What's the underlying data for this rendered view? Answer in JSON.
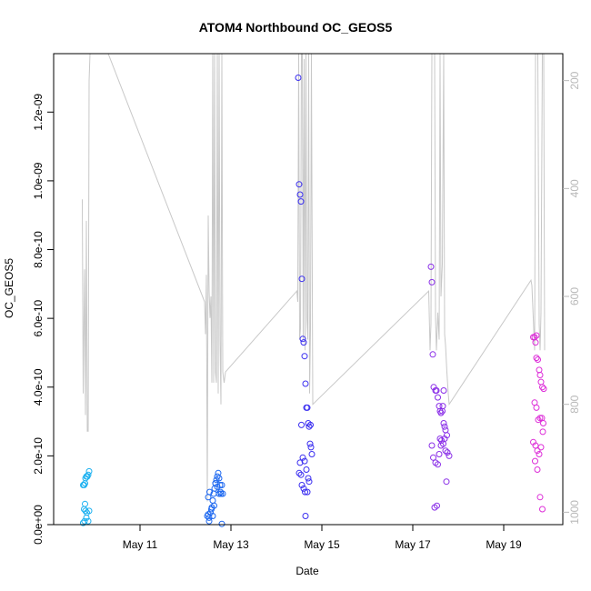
{
  "chart_data": {
    "type": "scatter",
    "title": "ATOM4 Northbound OC_GEOS5",
    "xlabel": "Date",
    "ylabel": "OC_GEOS5",
    "x_ticks": [
      {
        "day": 11,
        "label": "May 11"
      },
      {
        "day": 13,
        "label": "May 13"
      },
      {
        "day": 15,
        "label": "May 15"
      },
      {
        "day": 17,
        "label": "May 17"
      },
      {
        "day": 19,
        "label": "May 19"
      }
    ],
    "xlim": [
      9.1,
      20.3
    ],
    "ylim": [
      0,
      1.37e-09
    ],
    "y_ticks": [
      {
        "value": 0,
        "label": "0.0e+00"
      },
      {
        "value": 2e-10,
        "label": "2.0e-10"
      },
      {
        "value": 4e-10,
        "label": "4.0e-10"
      },
      {
        "value": 6e-10,
        "label": "6.0e-10"
      },
      {
        "value": 8e-10,
        "label": "8.0e-10"
      },
      {
        "value": 1e-09,
        "label": "1.0e-09"
      },
      {
        "value": 1.2e-09,
        "label": "1.2e-09"
      }
    ],
    "y2lim": [
      1023,
      150
    ],
    "y2_ticks": [
      {
        "value": 200,
        "label": "200"
      },
      {
        "value": 400,
        "label": "400"
      },
      {
        "value": 600,
        "label": "600"
      },
      {
        "value": 800,
        "label": "800"
      },
      {
        "value": 1000,
        "label": "1000"
      }
    ],
    "grid": false,
    "colors": {
      "pressure_line": "#c8c8c8",
      "flight1": "#1ab0f0",
      "flight2": "#1a66f0",
      "flight3": "#3a2ef0",
      "flight4": "#8a2ee8",
      "flight5": "#dd2ed8"
    },
    "series": [
      {
        "color_key": "flight1",
        "x": [
          9.75,
          9.77,
          9.8,
          9.82,
          9.84,
          9.86,
          9.88,
          9.77,
          9.79,
          9.8,
          9.83,
          9.78,
          9.82,
          9.86,
          9.88,
          9.75,
          9.79
        ],
        "y": [
          1.15e-10,
          1.15e-10,
          1.35e-10,
          1.4e-10,
          1.4e-10,
          1.45e-10,
          1.55e-10,
          4.5e-11,
          6e-11,
          4e-11,
          3.5e-11,
          1e-11,
          2e-11,
          1e-11,
          4e-11,
          5e-12,
          1.2e-10
        ]
      },
      {
        "color_key": "flight2",
        "x": [
          12.48,
          12.5,
          12.52,
          12.55,
          12.58,
          12.6,
          12.62,
          12.64,
          12.66,
          12.68,
          12.7,
          12.72,
          12.74,
          12.76,
          12.78,
          12.8,
          12.82,
          12.5,
          12.53,
          12.57,
          12.63,
          12.66,
          12.7,
          12.74,
          12.77,
          12.52,
          12.6,
          12.8
        ],
        "y": [
          2.5e-11,
          3e-11,
          2e-11,
          3.5e-11,
          5e-11,
          7e-11,
          9e-11,
          1.05e-10,
          1.2e-10,
          1.3e-10,
          1.4e-10,
          1.5e-10,
          1.35e-10,
          1.15e-10,
          9e-11,
          1.15e-10,
          9e-11,
          8e-11,
          9.5e-11,
          4.5e-11,
          5.5e-11,
          1.2e-10,
          1.1e-10,
          9e-11,
          9.5e-11,
          1e-11,
          2.5e-11,
          2e-12
        ]
      },
      {
        "color_key": "flight3",
        "x": [
          14.48,
          14.5,
          14.52,
          14.54,
          14.56,
          14.58,
          14.6,
          14.62,
          14.64,
          14.66,
          14.68,
          14.7,
          14.72,
          14.74,
          14.76,
          14.78,
          14.55,
          14.58,
          14.62,
          14.66,
          14.7,
          14.72,
          14.5,
          14.54,
          14.6,
          14.63,
          14.68,
          14.75,
          14.52,
          14.56,
          14.64
        ],
        "y": [
          1.3e-09,
          9.9e-10,
          9.6e-10,
          9.4e-10,
          7.15e-10,
          5.4e-10,
          5.3e-10,
          4.9e-10,
          4.1e-10,
          3.4e-10,
          3.4e-10,
          2.95e-10,
          2.85e-10,
          2.35e-10,
          2.25e-10,
          2.05e-10,
          2.9e-10,
          1.95e-10,
          1.85e-10,
          1.6e-10,
          1.35e-10,
          1.25e-10,
          1.5e-10,
          1.45e-10,
          1.05e-10,
          9.5e-11,
          9.5e-11,
          2.9e-10,
          1.8e-10,
          1.15e-10,
          2.5e-11
        ]
      },
      {
        "color_key": "flight4",
        "x": [
          17.4,
          17.42,
          17.44,
          17.46,
          17.5,
          17.52,
          17.55,
          17.58,
          17.6,
          17.62,
          17.65,
          17.68,
          17.7,
          17.72,
          17.75,
          17.6,
          17.63,
          17.67,
          17.72,
          17.76,
          17.8,
          17.45,
          17.5,
          17.55,
          17.58,
          17.62,
          17.66,
          17.7,
          17.74,
          17.48,
          17.53,
          17.68,
          17.42
        ],
        "y": [
          7.5e-10,
          7.05e-10,
          4.95e-10,
          4e-10,
          3.9e-10,
          3.9e-10,
          3.7e-10,
          3.45e-10,
          3.3e-10,
          3.25e-10,
          3.3e-10,
          2.95e-10,
          2.85e-10,
          2.75e-10,
          2.6e-10,
          2.5e-10,
          2.45e-10,
          2.35e-10,
          2.15e-10,
          2.1e-10,
          2e-10,
          1.95e-10,
          1.8e-10,
          1.75e-10,
          2.05e-10,
          2.3e-10,
          3.45e-10,
          2.5e-10,
          1.25e-10,
          5e-11,
          5.5e-11,
          3.9e-10,
          2.3e-10
        ]
      },
      {
        "color_key": "flight5",
        "x": [
          19.65,
          19.68,
          19.7,
          19.72,
          19.75,
          19.78,
          19.8,
          19.82,
          19.85,
          19.88,
          19.68,
          19.72,
          19.76,
          19.8,
          19.84,
          19.87,
          19.65,
          19.7,
          19.74,
          19.78,
          19.82,
          19.86,
          19.69,
          19.74,
          19.8,
          19.85,
          19.72
        ],
        "y": [
          5.45e-10,
          5.45e-10,
          5.3e-10,
          4.85e-10,
          4.8e-10,
          4.5e-10,
          4.35e-10,
          4.15e-10,
          4e-10,
          3.95e-10,
          3.55e-10,
          3.4e-10,
          3.05e-10,
          3.1e-10,
          3.1e-10,
          2.95e-10,
          2.4e-10,
          2.3e-10,
          2.15e-10,
          2.05e-10,
          2.25e-10,
          2.7e-10,
          1.85e-10,
          1.6e-10,
          8e-11,
          4.5e-11,
          5.5e-10
        ]
      }
    ],
    "pressure_line_y2": {
      "x": [
        9.73,
        9.75,
        9.78,
        9.8,
        9.82,
        9.84,
        9.86,
        9.88,
        9.9,
        9.93,
        10.3,
        12.42,
        12.44,
        12.46,
        12.48,
        12.5,
        12.52,
        12.54,
        12.56,
        12.58,
        12.6,
        12.62,
        12.64,
        12.66,
        12.68,
        12.7,
        12.72,
        12.74,
        12.76,
        12.78,
        12.8,
        12.82,
        12.85,
        12.88,
        14.45,
        14.47,
        14.49,
        14.51,
        14.53,
        14.55,
        14.57,
        14.59,
        14.61,
        14.63,
        14.65,
        14.67,
        14.69,
        14.71,
        14.73,
        14.75,
        14.77,
        14.8,
        17.35,
        17.38,
        17.4,
        17.42,
        17.45,
        17.48,
        17.5,
        17.52,
        17.55,
        17.58,
        17.6,
        17.62,
        17.65,
        17.68,
        17.7,
        17.72,
        17.75,
        17.78,
        17.8,
        19.6,
        19.62,
        19.65,
        19.68,
        19.7,
        19.72,
        19.75,
        19.78,
        19.8,
        19.82,
        19.85,
        19.88,
        19.9
      ],
      "y": [
        420,
        780,
        550,
        820,
        460,
        850,
        850,
        200,
        150,
        150,
        150,
        610,
        670,
        560,
        980,
        450,
        590,
        640,
        600,
        760,
        150,
        760,
        150,
        740,
        760,
        150,
        780,
        150,
        680,
        800,
        150,
        740,
        760,
        740,
        590,
        610,
        150,
        680,
        660,
        150,
        150,
        680,
        160,
        700,
        150,
        640,
        680,
        150,
        780,
        660,
        150,
        800,
        590,
        700,
        650,
        150,
        150,
        150,
        640,
        700,
        630,
        680,
        150,
        600,
        540,
        150,
        670,
        690,
        740,
        780,
        800,
        570,
        580,
        640,
        700,
        150,
        150,
        150,
        650,
        700,
        630,
        150,
        150,
        700
      ]
    }
  }
}
